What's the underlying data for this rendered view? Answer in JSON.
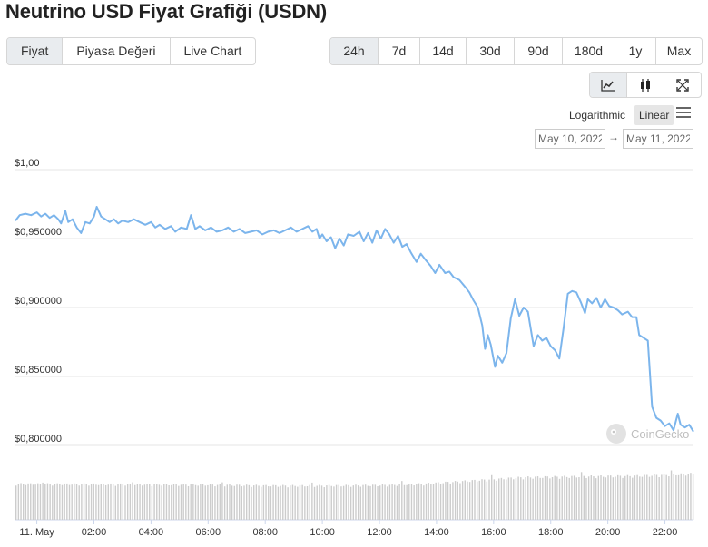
{
  "title": "Neutrino USD Fiyat Grafiği (USDN)",
  "tabs": [
    {
      "label": "Fiyat",
      "active": true
    },
    {
      "label": "Piyasa Değeri",
      "active": false
    },
    {
      "label": "Live Chart",
      "active": false
    }
  ],
  "ranges": [
    {
      "label": "24h",
      "active": true
    },
    {
      "label": "7d",
      "active": false
    },
    {
      "label": "14d",
      "active": false
    },
    {
      "label": "30d",
      "active": false
    },
    {
      "label": "90d",
      "active": false
    },
    {
      "label": "180d",
      "active": false
    },
    {
      "label": "1y",
      "active": false
    },
    {
      "label": "Max",
      "active": false
    }
  ],
  "chart_types": [
    {
      "icon": "line-chart-icon",
      "active": true
    },
    {
      "icon": "candlestick-icon",
      "active": false
    },
    {
      "icon": "expand-icon",
      "active": false
    }
  ],
  "scale": {
    "logarithmic": "Logarithmic",
    "linear": "Linear",
    "selected": "Linear"
  },
  "date_range": {
    "from": "May 10, 2022",
    "arrow": "→",
    "to": "May 11, 2022"
  },
  "watermark": "CoinGecko",
  "colors": {
    "line": "#7cb5ec",
    "volume": "#cccccc",
    "grid": "#e6e6e6",
    "active_bg": "#e9ecef"
  },
  "chart_data": {
    "type": "line",
    "ylim": [
      0.8,
      1.0
    ],
    "y_ticks": [
      {
        "value": 1.0,
        "label": "$1,00"
      },
      {
        "value": 0.95,
        "label": "$0,950000"
      },
      {
        "value": 0.9,
        "label": "$0,900000"
      },
      {
        "value": 0.85,
        "label": "$0,850000"
      },
      {
        "value": 0.8,
        "label": "$0,800000"
      }
    ],
    "x_range_hours": [
      -0.75,
      23.0
    ],
    "x_ticks": [
      {
        "hour": 0,
        "label": "11. May"
      },
      {
        "hour": 2,
        "label": "02:00"
      },
      {
        "hour": 4,
        "label": "04:00"
      },
      {
        "hour": 6,
        "label": "06:00"
      },
      {
        "hour": 8,
        "label": "08:00"
      },
      {
        "hour": 10,
        "label": "10:00"
      },
      {
        "hour": 12,
        "label": "12:00"
      },
      {
        "hour": 14,
        "label": "14:00"
      },
      {
        "hour": 16,
        "label": "16:00"
      },
      {
        "hour": 18,
        "label": "18:00"
      },
      {
        "hour": 20,
        "label": "20:00"
      },
      {
        "hour": 22,
        "label": "22:00"
      }
    ],
    "series": [
      {
        "points": [
          [
            -0.75,
            0.963
          ],
          [
            -0.6,
            0.967
          ],
          [
            -0.4,
            0.968
          ],
          [
            -0.2,
            0.967
          ],
          [
            0.0,
            0.969
          ],
          [
            0.15,
            0.966
          ],
          [
            0.3,
            0.968
          ],
          [
            0.45,
            0.965
          ],
          [
            0.6,
            0.967
          ],
          [
            0.75,
            0.964
          ],
          [
            0.85,
            0.961
          ],
          [
            1.0,
            0.97
          ],
          [
            1.1,
            0.962
          ],
          [
            1.25,
            0.964
          ],
          [
            1.4,
            0.958
          ],
          [
            1.55,
            0.954
          ],
          [
            1.7,
            0.962
          ],
          [
            1.85,
            0.961
          ],
          [
            2.0,
            0.966
          ],
          [
            2.1,
            0.973
          ],
          [
            2.25,
            0.966
          ],
          [
            2.4,
            0.964
          ],
          [
            2.55,
            0.962
          ],
          [
            2.7,
            0.964
          ],
          [
            2.85,
            0.961
          ],
          [
            3.0,
            0.963
          ],
          [
            3.2,
            0.962
          ],
          [
            3.4,
            0.964
          ],
          [
            3.6,
            0.962
          ],
          [
            3.8,
            0.96
          ],
          [
            4.0,
            0.962
          ],
          [
            4.15,
            0.958
          ],
          [
            4.3,
            0.96
          ],
          [
            4.5,
            0.957
          ],
          [
            4.7,
            0.959
          ],
          [
            4.85,
            0.955
          ],
          [
            5.05,
            0.958
          ],
          [
            5.25,
            0.957
          ],
          [
            5.4,
            0.967
          ],
          [
            5.55,
            0.957
          ],
          [
            5.7,
            0.959
          ],
          [
            5.9,
            0.956
          ],
          [
            6.1,
            0.958
          ],
          [
            6.3,
            0.955
          ],
          [
            6.5,
            0.956
          ],
          [
            6.7,
            0.958
          ],
          [
            6.9,
            0.955
          ],
          [
            7.1,
            0.957
          ],
          [
            7.3,
            0.954
          ],
          [
            7.5,
            0.955
          ],
          [
            7.7,
            0.956
          ],
          [
            7.9,
            0.953
          ],
          [
            8.1,
            0.955
          ],
          [
            8.3,
            0.956
          ],
          [
            8.5,
            0.954
          ],
          [
            8.7,
            0.956
          ],
          [
            8.9,
            0.958
          ],
          [
            9.1,
            0.955
          ],
          [
            9.3,
            0.957
          ],
          [
            9.5,
            0.959
          ],
          [
            9.65,
            0.955
          ],
          [
            9.8,
            0.957
          ],
          [
            9.9,
            0.95
          ],
          [
            10.0,
            0.953
          ],
          [
            10.15,
            0.948
          ],
          [
            10.3,
            0.951
          ],
          [
            10.45,
            0.943
          ],
          [
            10.6,
            0.95
          ],
          [
            10.75,
            0.945
          ],
          [
            10.9,
            0.953
          ],
          [
            11.1,
            0.952
          ],
          [
            11.3,
            0.955
          ],
          [
            11.45,
            0.948
          ],
          [
            11.6,
            0.954
          ],
          [
            11.75,
            0.947
          ],
          [
            11.9,
            0.956
          ],
          [
            12.05,
            0.95
          ],
          [
            12.2,
            0.957
          ],
          [
            12.35,
            0.953
          ],
          [
            12.5,
            0.947
          ],
          [
            12.65,
            0.952
          ],
          [
            12.8,
            0.944
          ],
          [
            12.95,
            0.946
          ],
          [
            13.1,
            0.94
          ],
          [
            13.3,
            0.933
          ],
          [
            13.45,
            0.939
          ],
          [
            13.6,
            0.935
          ],
          [
            13.8,
            0.93
          ],
          [
            13.95,
            0.925
          ],
          [
            14.1,
            0.931
          ],
          [
            14.3,
            0.925
          ],
          [
            14.45,
            0.926
          ],
          [
            14.6,
            0.922
          ],
          [
            14.8,
            0.92
          ],
          [
            15.0,
            0.915
          ],
          [
            15.15,
            0.911
          ],
          [
            15.3,
            0.905
          ],
          [
            15.45,
            0.9
          ],
          [
            15.6,
            0.887
          ],
          [
            15.7,
            0.87
          ],
          [
            15.8,
            0.88
          ],
          [
            15.9,
            0.873
          ],
          [
            16.05,
            0.857
          ],
          [
            16.15,
            0.865
          ],
          [
            16.3,
            0.86
          ],
          [
            16.45,
            0.867
          ],
          [
            16.6,
            0.892
          ],
          [
            16.75,
            0.906
          ],
          [
            16.9,
            0.894
          ],
          [
            17.05,
            0.9
          ],
          [
            17.2,
            0.897
          ],
          [
            17.4,
            0.872
          ],
          [
            17.55,
            0.88
          ],
          [
            17.7,
            0.876
          ],
          [
            17.85,
            0.878
          ],
          [
            18.0,
            0.872
          ],
          [
            18.15,
            0.869
          ],
          [
            18.3,
            0.863
          ],
          [
            18.45,
            0.885
          ],
          [
            18.6,
            0.91
          ],
          [
            18.75,
            0.912
          ],
          [
            18.9,
            0.911
          ],
          [
            19.05,
            0.904
          ],
          [
            19.2,
            0.896
          ],
          [
            19.3,
            0.906
          ],
          [
            19.45,
            0.903
          ],
          [
            19.6,
            0.907
          ],
          [
            19.75,
            0.9
          ],
          [
            19.9,
            0.906
          ],
          [
            20.05,
            0.901
          ],
          [
            20.2,
            0.9
          ],
          [
            20.35,
            0.898
          ],
          [
            20.5,
            0.895
          ],
          [
            20.7,
            0.897
          ],
          [
            20.85,
            0.893
          ],
          [
            21.0,
            0.893
          ],
          [
            21.1,
            0.88
          ],
          [
            21.25,
            0.878
          ],
          [
            21.4,
            0.876
          ],
          [
            21.55,
            0.828
          ],
          [
            21.7,
            0.82
          ],
          [
            21.85,
            0.818
          ],
          [
            22.0,
            0.814
          ],
          [
            22.15,
            0.816
          ],
          [
            22.3,
            0.811
          ],
          [
            22.45,
            0.823
          ],
          [
            22.55,
            0.815
          ],
          [
            22.7,
            0.813
          ],
          [
            22.85,
            0.815
          ],
          [
            23.0,
            0.81
          ]
        ]
      }
    ],
    "volume": {
      "note": "relative bar heights 0-1, one per bar across the x range",
      "levels": [
        [
          -0.75,
          0.78
        ],
        [
          3.0,
          0.77
        ],
        [
          6.0,
          0.76
        ],
        [
          8.0,
          0.74
        ],
        [
          10.0,
          0.74
        ],
        [
          12.0,
          0.75
        ],
        [
          13.5,
          0.78
        ],
        [
          15.0,
          0.84
        ],
        [
          17.0,
          0.92
        ],
        [
          19.0,
          0.94
        ],
        [
          21.0,
          0.95
        ],
        [
          23.0,
          1.0
        ]
      ]
    }
  }
}
